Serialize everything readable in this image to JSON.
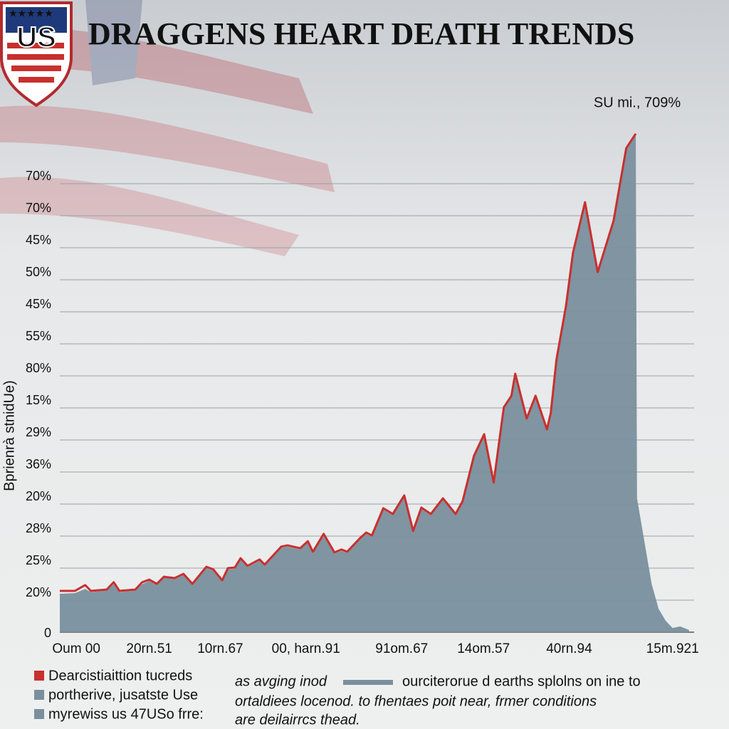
{
  "chart_data": {
    "type": "area",
    "title": "DRAGGENS  HEART DEATH TRENDS",
    "annotation": "SU mi., 709%",
    "y_axis_label": "Bprienrà stnidUe)",
    "y_labels": [
      "0",
      "20%",
      "25%",
      "28%",
      "20%",
      "36%",
      "29%",
      "15%",
      "80%",
      "55%",
      "45%",
      "50%",
      "45%",
      "70%",
      "70%"
    ],
    "yticks": [
      0,
      1,
      2,
      3,
      4,
      5,
      6,
      7,
      8,
      9,
      10,
      11,
      12,
      13,
      14
    ],
    "ylim": [
      0,
      16
    ],
    "xlim": [
      0,
      100
    ],
    "xticks": [
      {
        "value": 2.6,
        "label": "Oum 00"
      },
      {
        "value": 14.1,
        "label": "20rn.51"
      },
      {
        "value": 25.3,
        "label": "10rn.67"
      },
      {
        "value": 38.8,
        "label": "00, harn.91"
      },
      {
        "value": 53.9,
        "label": "91om.67"
      },
      {
        "value": 66.8,
        "label": "14om.57"
      },
      {
        "value": 80.3,
        "label": "40rn.94"
      },
      {
        "value": 96.6,
        "label": "15m.921"
      }
    ],
    "grid": true,
    "series": [
      {
        "name": "Dearcistiaittion tucreds",
        "color": "#c8302e",
        "kind": "line",
        "x": [
          0,
          2.4,
          4.0,
          4.9,
          7.4,
          8.5,
          9.4,
          11.9,
          13.0,
          14.1,
          15.3,
          16.4,
          18.1,
          19.5,
          20.9,
          23.1,
          24.2,
          25.6,
          26.5,
          27.6,
          28.5,
          29.6,
          31.5,
          32.3,
          34.9,
          35.9,
          37.9,
          39.1,
          39.9,
          41.6,
          43.3,
          44.4,
          45.3,
          47.3,
          48.3,
          49.2,
          51.0,
          52.5,
          54.3,
          55.7,
          57.0,
          58.5,
          60.4,
          62.4,
          63.5,
          65.3,
          66.9,
          68.4,
          70.0,
          71.2,
          71.8,
          73.6,
          75.0,
          76.8,
          77.4,
          78.3,
          79.8,
          80.9,
          82.8,
          84.8,
          87.3,
          89.3,
          90.8
        ],
        "values": [
          1.29,
          1.29,
          1.47,
          1.29,
          1.33,
          1.56,
          1.29,
          1.33,
          1.56,
          1.64,
          1.51,
          1.73,
          1.69,
          1.82,
          1.51,
          2.04,
          1.96,
          1.62,
          2.0,
          2.02,
          2.31,
          2.07,
          2.27,
          2.11,
          2.67,
          2.71,
          2.62,
          2.84,
          2.51,
          3.07,
          2.49,
          2.58,
          2.51,
          2.93,
          3.11,
          3.02,
          3.87,
          3.69,
          4.27,
          3.16,
          3.89,
          3.69,
          4.18,
          3.69,
          4.09,
          5.51,
          6.18,
          4.67,
          7.02,
          7.38,
          8.07,
          6.67,
          7.38,
          6.33,
          6.84,
          8.51,
          10.18,
          11.84,
          13.42,
          11.24,
          12.84,
          15.11,
          15.56
        ]
      },
      {
        "name": "portherive, jusatste Use",
        "color": "#7a8f9e",
        "kind": "area",
        "x": [
          0,
          2.4,
          4.0,
          4.9,
          7.4,
          8.5,
          9.4,
          11.9,
          13.0,
          14.1,
          15.3,
          16.4,
          18.1,
          19.5,
          20.9,
          23.1,
          24.2,
          25.6,
          26.5,
          27.6,
          28.5,
          29.6,
          31.5,
          32.3,
          34.9,
          35.9,
          37.9,
          39.1,
          39.9,
          41.6,
          43.3,
          44.4,
          45.3,
          47.3,
          48.3,
          49.2,
          51.0,
          52.5,
          54.3,
          55.7,
          57.0,
          58.5,
          60.4,
          62.4,
          63.5,
          65.3,
          66.9,
          68.4,
          70.0,
          71.2,
          71.8,
          73.6,
          75.0,
          76.8,
          77.4,
          78.3,
          79.8,
          80.9,
          82.8,
          84.8,
          87.3,
          89.3,
          90.8,
          91.0,
          93.3,
          94.4,
          95.5,
          96.6,
          97.8,
          99.2
        ],
        "values": [
          1.2,
          1.22,
          1.35,
          1.25,
          1.3,
          1.5,
          1.25,
          1.3,
          1.5,
          1.6,
          1.48,
          1.7,
          1.66,
          1.78,
          1.48,
          2.0,
          1.92,
          1.58,
          1.96,
          1.98,
          2.27,
          2.03,
          2.23,
          2.07,
          2.63,
          2.67,
          2.58,
          2.8,
          2.47,
          3.03,
          2.45,
          2.54,
          2.47,
          2.89,
          3.07,
          2.98,
          3.83,
          3.65,
          4.23,
          3.12,
          3.85,
          3.65,
          4.14,
          3.65,
          4.05,
          5.47,
          6.14,
          4.63,
          6.98,
          7.34,
          8.03,
          6.63,
          7.34,
          6.29,
          6.8,
          8.47,
          10.14,
          11.8,
          13.38,
          11.2,
          12.8,
          15.07,
          15.52,
          4.18,
          1.51,
          0.73,
          0.36,
          0.13,
          0.18,
          0.07
        ]
      }
    ],
    "legend_extra": "myrewiss us 47USo frre:",
    "note_left": "as avging inod",
    "note_lines": [
      "ourciterorue d earths splolns on ine to",
      "ortaldiees locenod. to fhentaes poit near, frmer conditions",
      "are deilairrcs thead."
    ]
  }
}
